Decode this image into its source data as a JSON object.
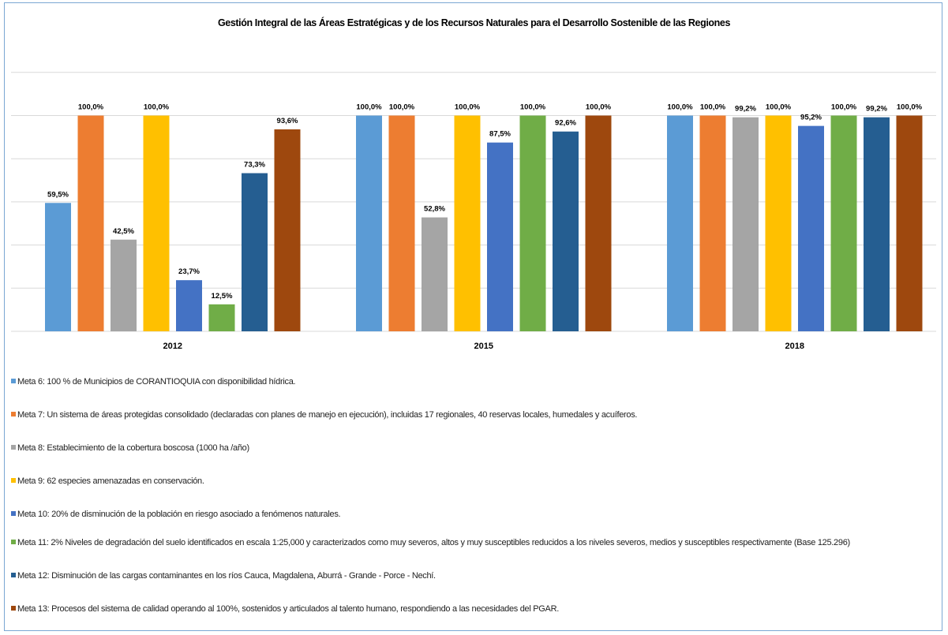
{
  "chart_data": {
    "type": "bar",
    "title": "Gestión Integral de las Áreas Estratégicas y de los Recursos Naturales para el Desarrollo Sostenible de las Regiones",
    "categories": [
      "2012",
      "2015",
      "2018"
    ],
    "ylim": [
      0,
      100
    ],
    "grid": true,
    "legend_position": "bottom",
    "series": [
      {
        "name": "Meta 6: 100 % de Municipios de CORANTIOQUIA con disponibilidad hídrica.",
        "color": "#5b9bd5",
        "values": [
          59.5,
          100.0,
          100.0
        ],
        "labels": [
          "59,5%",
          "100,0%",
          "100,0%"
        ]
      },
      {
        "name": "Meta 7: Un sistema de áreas protegidas consolidado (declaradas  con planes de manejo en ejecución), incluidas 17 regionales, 40 reservas locales, humedales y acuíferos.",
        "color": "#ed7d31",
        "values": [
          100.0,
          100.0,
          100.0
        ],
        "labels": [
          "100,0%",
          "100,0%",
          "100,0%"
        ]
      },
      {
        "name": "Meta 8: Establecimiento de la cobertura boscosa (1000 ha /año)",
        "color": "#a5a5a5",
        "values": [
          42.5,
          52.8,
          99.2
        ],
        "labels": [
          "42,5%",
          "52,8%",
          "99,2%"
        ]
      },
      {
        "name": "Meta 9:  62 especies amenazadas en conservación.",
        "color": "#ffc000",
        "values": [
          100.0,
          100.0,
          100.0
        ],
        "labels": [
          "100,0%",
          "100,0%",
          "100,0%"
        ]
      },
      {
        "name": "Meta 10: 20% de disminución de la población en riesgo asociado a fenómenos naturales.",
        "color": "#4472c4",
        "values": [
          23.7,
          87.5,
          95.2
        ],
        "labels": [
          "23,7%",
          "87,5%",
          "95,2%"
        ]
      },
      {
        "name": "Meta 11: 2% Niveles de degradación del suelo identificados en escala 1:25,000 y caracterizados como muy severos, altos y muy susceptibles reducidos a los niveles severos, medios y susceptibles respectivamente (Base 125.296)",
        "color": "#70ad47",
        "values": [
          12.5,
          100.0,
          100.0
        ],
        "labels": [
          "12,5%",
          "100,0%",
          "100,0%"
        ]
      },
      {
        "name": "Meta 12: Disminución de las cargas contaminantes en los ríos Cauca, Magdalena, Aburrá - Grande - Porce - Nechí.",
        "color": "#255e91",
        "values": [
          73.3,
          92.6,
          99.2
        ],
        "labels": [
          "73,3%",
          "92,6%",
          "99,2%"
        ]
      },
      {
        "name": "Meta 13: Procesos del sistema de calidad operando al 100%, sostenidos y articulados al talento humano, respondiendo a las necesidades del PGAR.",
        "color": "#9e480e",
        "values": [
          93.6,
          100.0,
          100.0
        ],
        "labels": [
          "93,6%",
          "100,0%",
          "100,0%"
        ]
      }
    ]
  }
}
